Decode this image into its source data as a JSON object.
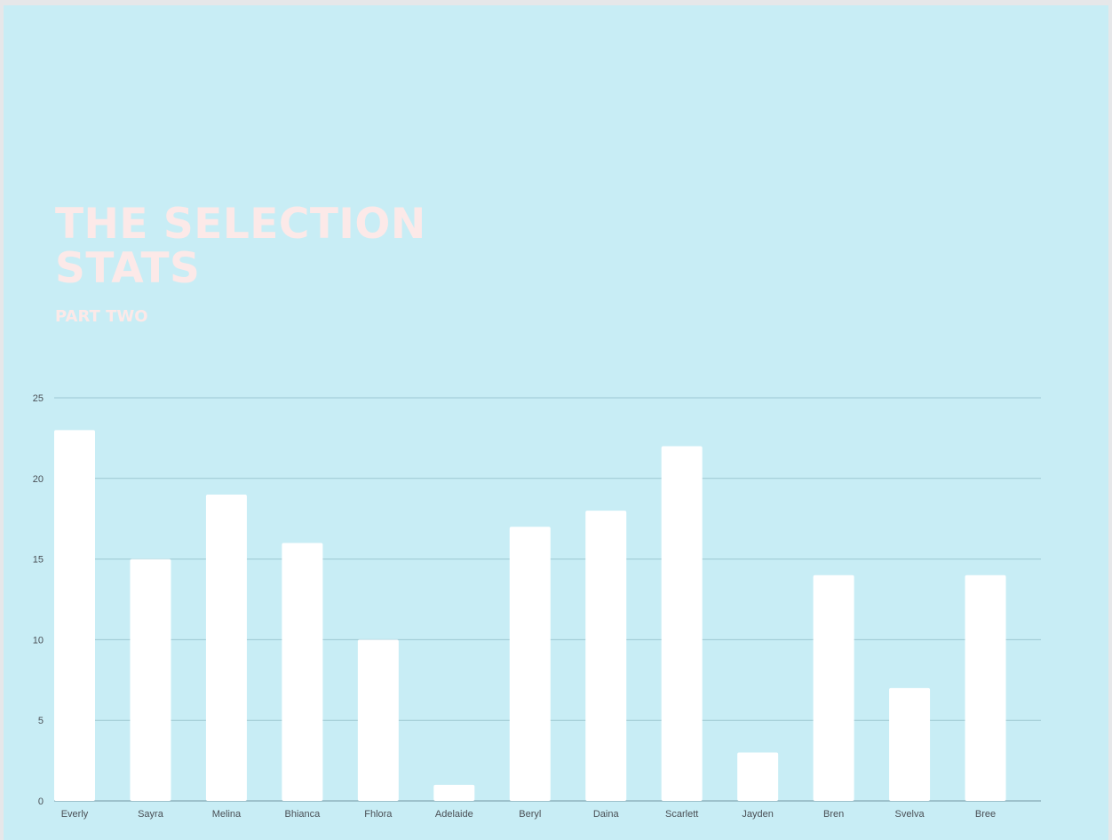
{
  "slide": {
    "title_line1": "THE SELECTION",
    "title_line2": "STATS",
    "subtitle": "PART TWO"
  },
  "colors": {
    "background": "#c8edf5",
    "bar": "#ffffff",
    "gridline": "#9dc8d2",
    "title": "#fce9e8"
  },
  "chart_data": {
    "type": "bar",
    "title": "",
    "xlabel": "",
    "ylabel": "",
    "categories": [
      "Everly",
      "Sayra",
      "Melina",
      "Bhianca",
      "Fhlora",
      "Adelaide",
      "Beryl",
      "Daina",
      "Scarlett",
      "Jayden",
      "Bren",
      "Svelva",
      "Bree"
    ],
    "values": [
      23,
      15,
      19,
      16,
      10,
      1,
      17,
      18,
      22,
      3,
      14,
      7,
      14
    ],
    "ylim": [
      0,
      25
    ],
    "yticks": [
      0,
      5,
      10,
      15,
      20,
      25
    ],
    "grid": true,
    "legend": "none"
  }
}
